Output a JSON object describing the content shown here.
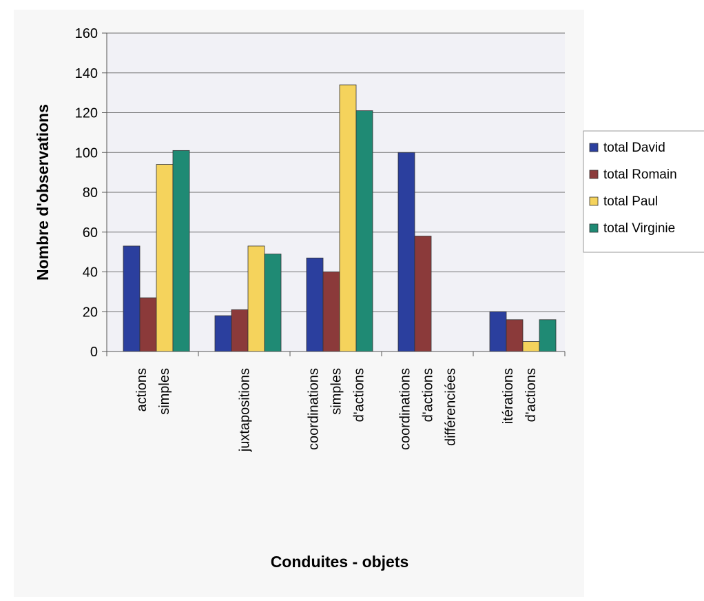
{
  "chart_data": {
    "type": "bar",
    "title": "",
    "xlabel": "Conduites - objets",
    "ylabel": "Nombre d'observations",
    "ylim": [
      0,
      160
    ],
    "yticks": [
      0,
      20,
      40,
      60,
      80,
      100,
      120,
      140,
      160
    ],
    "grid": true,
    "legend_position": "right",
    "categories": [
      [
        "actions",
        "simples"
      ],
      [
        "juxtapositions"
      ],
      [
        "coordinations",
        "simples",
        "d'actions"
      ],
      [
        "coordinations",
        "d'actions",
        "différenciées"
      ],
      [
        "itérations",
        "d'actions"
      ]
    ],
    "series": [
      {
        "name": "total David",
        "color": "#2b3f9e",
        "values": [
          53,
          18,
          47,
          100,
          20
        ]
      },
      {
        "name": "total Romain",
        "color": "#8b3a3a",
        "values": [
          27,
          21,
          40,
          58,
          16
        ]
      },
      {
        "name": "total Paul",
        "color": "#f5d35c",
        "values": [
          94,
          53,
          134,
          0,
          5
        ]
      },
      {
        "name": "total Virginie",
        "color": "#1f8a74",
        "values": [
          101,
          49,
          121,
          0,
          16
        ]
      }
    ]
  }
}
